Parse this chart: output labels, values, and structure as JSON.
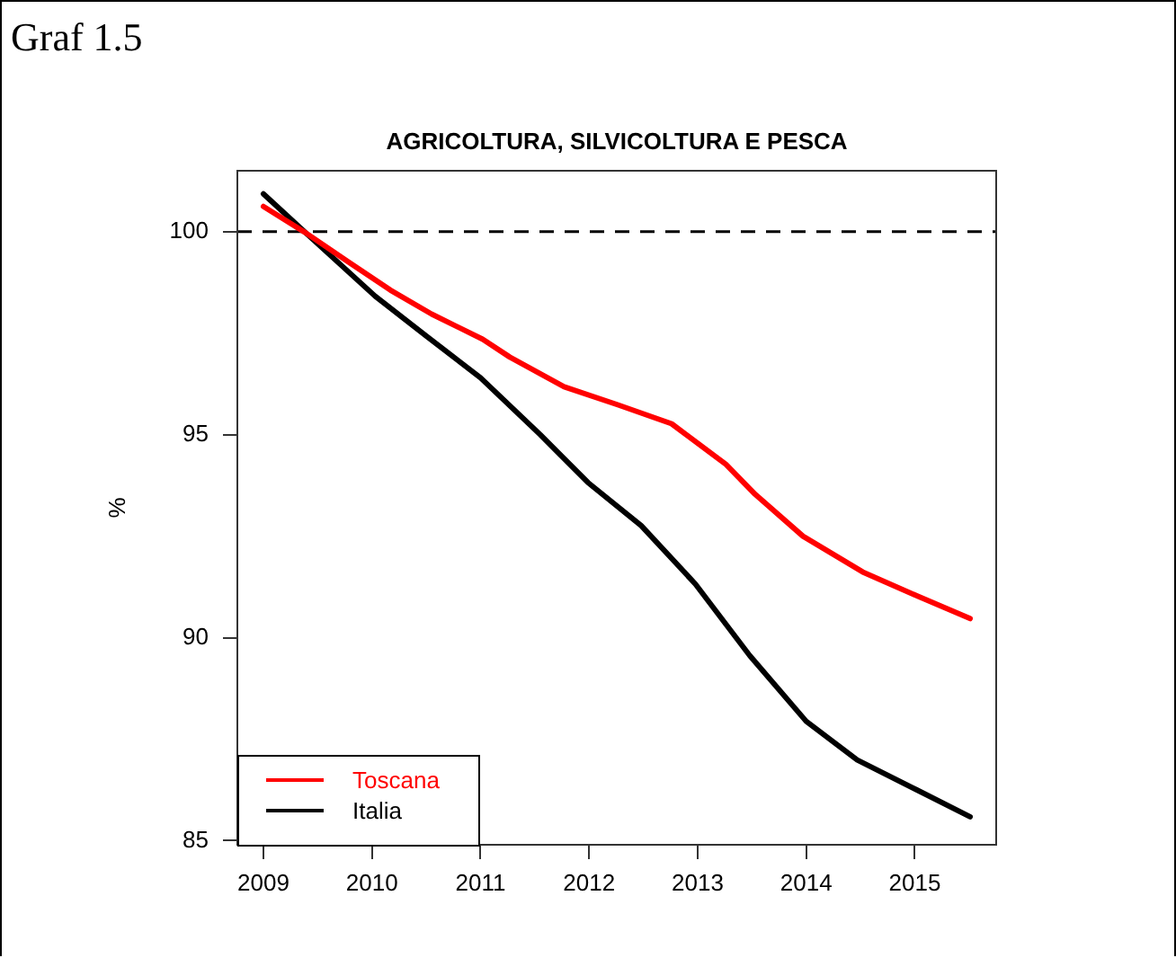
{
  "chart_data": {
    "type": "line",
    "title": "AGRICOLTURA, SILVICOLTURA E PESCA",
    "ylabel": "%",
    "annotations": [
      "Graf 1.5"
    ],
    "xlim": [
      2008.76,
      2015.75
    ],
    "xticks": [
      2009,
      2010,
      2011,
      2012,
      2013,
      2014,
      2015
    ],
    "ylim": [
      84.9,
      101.5
    ],
    "yticks": [
      85,
      90,
      95,
      100
    ],
    "grid": false,
    "legend": "bottom left",
    "marker": "none",
    "line_style": "solid",
    "ref_lines": [
      {
        "axis": "y",
        "value": 100,
        "color": "#000000",
        "line_style": "dashed"
      }
    ],
    "series": [
      {
        "name": "Toscana",
        "color": "#ff0000",
        "x": [
          2009.0,
          2009.39,
          2009.78,
          2010.17,
          2010.55,
          2011.02,
          2011.27,
          2011.77,
          2012.26,
          2012.76,
          2013.26,
          2013.53,
          2013.97,
          2014.52,
          2015.02,
          2015.51
        ],
        "values": [
          100.62,
          99.97,
          99.26,
          98.56,
          97.97,
          97.35,
          96.91,
          96.18,
          95.74,
          95.27,
          94.27,
          93.53,
          92.5,
          91.62,
          91.03,
          90.47
        ]
      },
      {
        "name": "Italia",
        "color": "#000000",
        "x": [
          2009.0,
          2009.39,
          2010.03,
          2010.5,
          2011.0,
          2011.55,
          2011.99,
          2012.48,
          2012.98,
          2013.48,
          2014.0,
          2014.47,
          2015.02,
          2015.51
        ],
        "values": [
          100.93,
          99.97,
          98.41,
          97.43,
          96.4,
          95.0,
          93.82,
          92.76,
          91.32,
          89.56,
          87.94,
          86.99,
          86.25,
          85.59
        ]
      }
    ]
  }
}
